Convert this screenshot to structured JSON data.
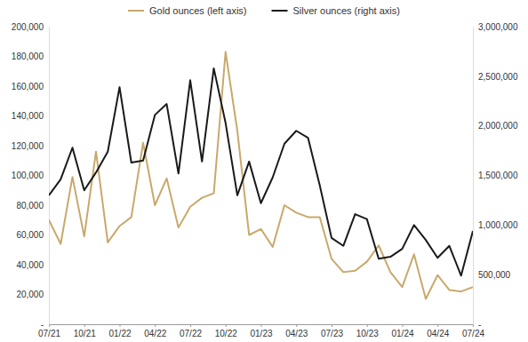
{
  "chart_data": {
    "type": "line",
    "categories": [
      "07/21",
      null,
      null,
      "10/21",
      null,
      null,
      "01/22",
      null,
      null,
      "04/22",
      null,
      null,
      "07/22",
      null,
      null,
      "10/22",
      null,
      null,
      "01/23",
      null,
      null,
      "04/23",
      null,
      null,
      "07/23",
      null,
      null,
      "10/23",
      null,
      null,
      "01/24",
      null,
      null,
      "04/24",
      null,
      null,
      "07/24"
    ],
    "series": [
      {
        "name": "Gold ounces (left axis)",
        "color": "#c8a96b",
        "values": [
          70000,
          54000,
          99000,
          59000,
          116000,
          55000,
          66000,
          72000,
          122000,
          80000,
          98000,
          65000,
          79000,
          85000,
          88000,
          183000,
          130000,
          60000,
          64000,
          52000,
          80000,
          75000,
          72000,
          72000,
          44000,
          35000,
          36000,
          42000,
          53000,
          35000,
          25000,
          47000,
          17000,
          33000,
          23000,
          22000,
          25000
        ]
      },
      {
        "name": "Silver ounces (right axis)",
        "color": "#1a1a1a",
        "axis": "y2",
        "values": [
          1300000,
          1460000,
          1780000,
          1350000,
          1530000,
          1740000,
          2390000,
          1630000,
          1650000,
          2110000,
          2220000,
          1520000,
          2460000,
          1640000,
          2580000,
          2030000,
          1300000,
          1640000,
          1220000,
          1480000,
          1820000,
          1950000,
          1880000,
          1400000,
          870000,
          790000,
          1110000,
          1060000,
          660000,
          680000,
          760000,
          1000000,
          850000,
          670000,
          790000,
          490000,
          940000
        ]
      }
    ],
    "ylim": [
      0,
      200000
    ],
    "yticks": [
      {
        "value": 0,
        "label": "-"
      },
      {
        "value": 20000,
        "label": "20,000"
      },
      {
        "value": 40000,
        "label": "40,000"
      },
      {
        "value": 60000,
        "label": "60,000"
      },
      {
        "value": 80000,
        "label": "80,000"
      },
      {
        "value": 100000,
        "label": "100,000"
      },
      {
        "value": 120000,
        "label": "120,000"
      },
      {
        "value": 140000,
        "label": "140,000"
      },
      {
        "value": 160000,
        "label": "160,000"
      },
      {
        "value": 180000,
        "label": "180,000"
      },
      {
        "value": 200000,
        "label": "200,000"
      }
    ],
    "y2lim": [
      0,
      3000000
    ],
    "y2ticks": [
      {
        "value": 0,
        "label": "-"
      },
      {
        "value": 500000,
        "label": "500,000"
      },
      {
        "value": 1000000,
        "label": "1,000,000"
      },
      {
        "value": 1500000,
        "label": "1,500,000"
      },
      {
        "value": 2000000,
        "label": "2,000,000"
      },
      {
        "value": 2500000,
        "label": "2,500,000"
      },
      {
        "value": 3000000,
        "label": "3,000,000"
      }
    ],
    "legend": "top",
    "grid": false
  }
}
